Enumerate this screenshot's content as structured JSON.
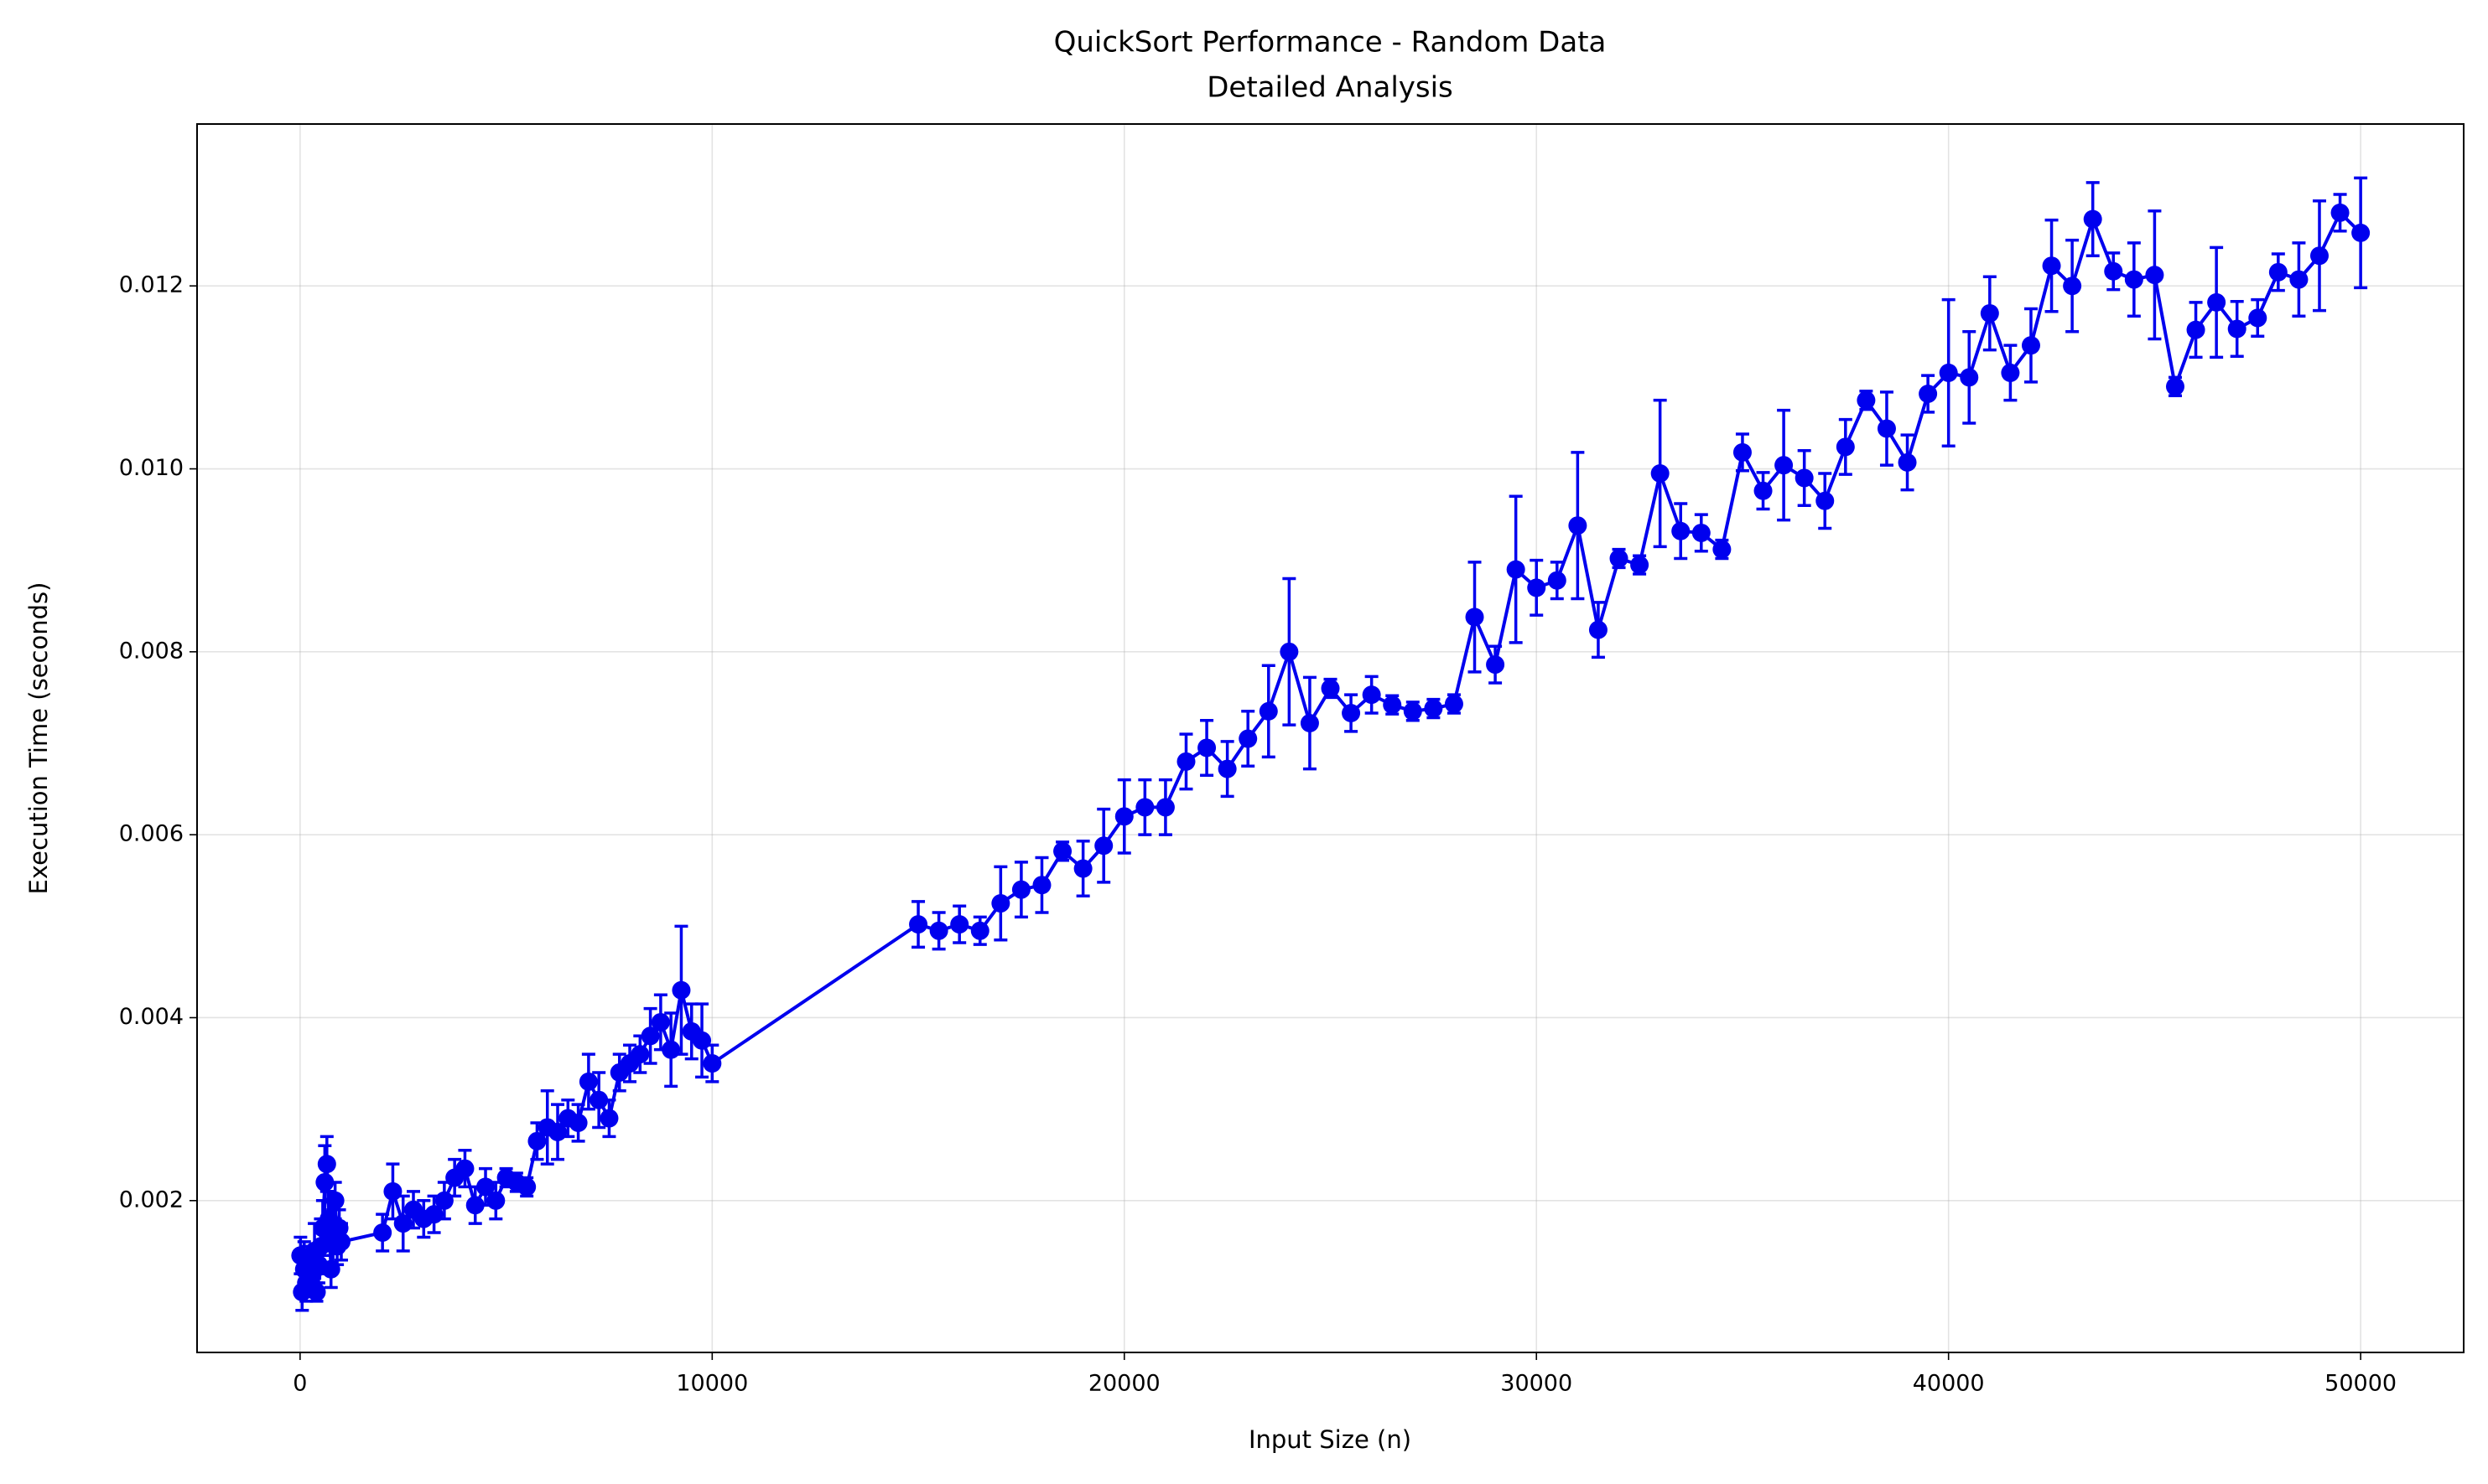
{
  "chart_data": {
    "type": "errorbar_line",
    "title": [
      "QuickSort Performance - Random Data",
      "Detailed Analysis"
    ],
    "xlabel": "Input Size (n)",
    "ylabel": "Execution Time (seconds)",
    "color": "#0000ee",
    "grid": true,
    "xlim": [
      -2500,
      52500
    ],
    "ylim": [
      0.00034,
      0.01377
    ],
    "xticks": [
      0,
      10000,
      20000,
      30000,
      40000,
      50000
    ],
    "yticks": [
      0.002,
      0.004,
      0.006,
      0.008,
      {
        "value": 0.01,
        "label": "0.010"
      },
      {
        "value": 0.012,
        "label": "0.012"
      }
    ],
    "x": [
      10,
      50,
      100,
      150,
      200,
      250,
      300,
      350,
      400,
      450,
      500,
      550,
      600,
      650,
      700,
      750,
      800,
      850,
      900,
      950,
      1000,
      2000,
      2250,
      2500,
      2750,
      3000,
      3250,
      3500,
      3750,
      4000,
      4250,
      4500,
      4750,
      5000,
      5250,
      5500,
      5750,
      6000,
      6250,
      6500,
      6750,
      7000,
      7250,
      7500,
      7750,
      8000,
      8250,
      8500,
      8750,
      9000,
      9250,
      9500,
      9750,
      10000,
      15000,
      15500,
      16000,
      16500,
      17000,
      17500,
      18000,
      18500,
      19000,
      19500,
      20000,
      20500,
      21000,
      21500,
      22000,
      22500,
      23000,
      23500,
      24000,
      24500,
      25000,
      25500,
      26000,
      26500,
      27000,
      27500,
      28000,
      28500,
      29000,
      29500,
      30000,
      30500,
      31000,
      31500,
      32000,
      32500,
      33000,
      33500,
      34000,
      34500,
      35000,
      35500,
      36000,
      36500,
      37000,
      37500,
      38000,
      38500,
      39000,
      39500,
      40000,
      40500,
      41000,
      41500,
      42000,
      42500,
      43000,
      43500,
      44000,
      44500,
      45000,
      45500,
      46000,
      46500,
      47000,
      47500,
      48000,
      48500,
      49000,
      49500,
      50000
    ],
    "values": [
      0.0014,
      0.001,
      0.00125,
      0.0011,
      0.0013,
      0.00105,
      0.0012,
      0.00145,
      0.001,
      0.0013,
      0.0015,
      0.0017,
      0.0022,
      0.0024,
      0.0018,
      0.00125,
      0.0016,
      0.002,
      0.0015,
      0.0017,
      0.00155,
      0.00165,
      0.0021,
      0.00175,
      0.0019,
      0.0018,
      0.00185,
      0.002,
      0.00225,
      0.00235,
      0.00195,
      0.00215,
      0.002,
      0.00225,
      0.0022,
      0.00215,
      0.00265,
      0.0028,
      0.00275,
      0.0029,
      0.00285,
      0.0033,
      0.0031,
      0.0029,
      0.0034,
      0.0035,
      0.0036,
      0.0038,
      0.00395,
      0.00365,
      0.0043,
      0.00385,
      0.00375,
      0.0035,
      0.00502,
      0.00495,
      0.00502,
      0.00495,
      0.00525,
      0.0054,
      0.00545,
      0.00582,
      0.00563,
      0.00588,
      0.0062,
      0.0063,
      0.0063,
      0.0068,
      0.00695,
      0.00672,
      0.00705,
      0.00735,
      0.008,
      0.00722,
      0.0076,
      0.00733,
      0.00753,
      0.00742,
      0.00735,
      0.00738,
      0.00743,
      0.00838,
      0.00786,
      0.0089,
      0.0087,
      0.00878,
      0.00938,
      0.00824,
      0.00902,
      0.00895,
      0.00995,
      0.00932,
      0.0093,
      0.00912,
      0.01018,
      0.00976,
      0.01004,
      0.0099,
      0.00965,
      0.01024,
      0.01075,
      0.01044,
      0.01007,
      0.01082,
      0.01105,
      0.011,
      0.0117,
      0.01105,
      0.01135,
      0.01222,
      0.012,
      0.01273,
      0.01216,
      0.01207,
      0.01212,
      0.0109,
      0.01152,
      0.01182,
      0.01153,
      0.01165,
      0.01215,
      0.01207,
      0.01233,
      0.0128,
      0.01258
    ],
    "errors": [
      0.0002,
      0.0002,
      0.0003,
      0.0002,
      0.0002,
      0.0001,
      0.0002,
      0.0003,
      0.0001,
      0.0002,
      0.0003,
      0.0003,
      0.0004,
      0.0003,
      0.0003,
      0.0002,
      0.0003,
      0.0002,
      0.0002,
      0.0002,
      0.0002,
      0.0002,
      0.0003,
      0.0003,
      0.0002,
      0.0002,
      0.0002,
      0.0002,
      0.0002,
      0.0002,
      0.0002,
      0.0002,
      0.0002,
      0.0001,
      0.0001,
      0.0001,
      0.0002,
      0.0004,
      0.0003,
      0.0002,
      0.0002,
      0.0003,
      0.0003,
      0.0002,
      0.0002,
      0.0002,
      0.0002,
      0.0003,
      0.0003,
      0.0004,
      0.0007,
      0.0003,
      0.0004,
      0.0002,
      0.00025,
      0.0002,
      0.0002,
      0.00015,
      0.0004,
      0.0003,
      0.0003,
      0.0001,
      0.0003,
      0.0004,
      0.0004,
      0.0003,
      0.0003,
      0.0003,
      0.0003,
      0.0003,
      0.0003,
      0.0005,
      0.0008,
      0.0005,
      0.0001,
      0.0002,
      0.0002,
      0.0001,
      0.0001,
      0.0001,
      0.0001,
      0.0006,
      0.0002,
      0.0008,
      0.0003,
      0.0002,
      0.0008,
      0.0003,
      0.0001,
      0.0001,
      0.0008,
      0.0003,
      0.0002,
      0.0001,
      0.0002,
      0.0002,
      0.0006,
      0.0003,
      0.0003,
      0.0003,
      0.0001,
      0.0004,
      0.0003,
      0.0002,
      0.0008,
      0.0005,
      0.0004,
      0.0003,
      0.0004,
      0.0005,
      0.0005,
      0.0004,
      0.0002,
      0.0004,
      0.0007,
      0.0001,
      0.0003,
      0.0006,
      0.0003,
      0.0002,
      0.0002,
      0.0004,
      0.0006,
      0.0002,
      0.0006
    ]
  }
}
